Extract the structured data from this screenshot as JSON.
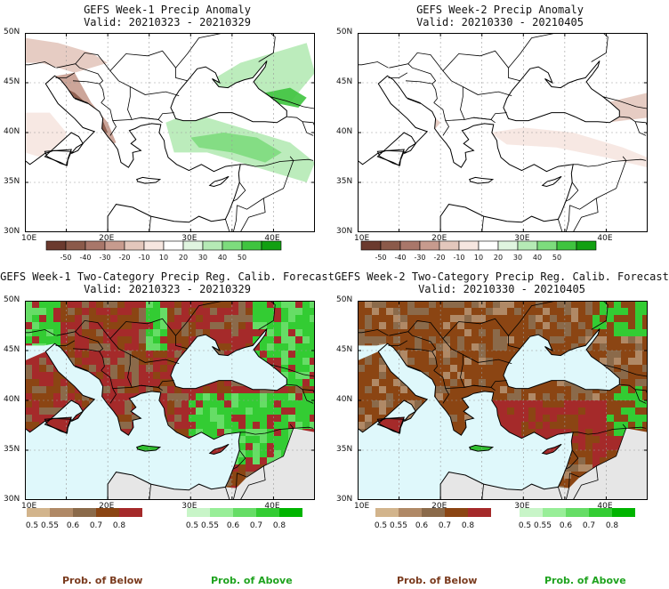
{
  "panels": [
    {
      "id": "p1",
      "title": "GEFS Week-1 Precip Anomaly",
      "valid": "Valid: 20210323 - 20210329",
      "kind": "anomaly"
    },
    {
      "id": "p2",
      "title": "GEFS Week-2 Precip Anomaly",
      "valid": "Valid: 20210330 - 20210405",
      "kind": "anomaly"
    },
    {
      "id": "p3",
      "title": "GEFS Week-1 Two-Category Precip Reg. Calib. Forecast",
      "valid": "Valid: 20210323 - 20210329",
      "kind": "prob"
    },
    {
      "id": "p4",
      "title": "GEFS Week-2 Two-Category Precip Reg. Calib. Forecast",
      "valid": "Valid: 20210330 - 20210405",
      "kind": "prob"
    }
  ],
  "axes": {
    "lat_labels": [
      "50N",
      "45N",
      "40N",
      "35N",
      "30N"
    ],
    "lon_labels": [
      "10E",
      "20E",
      "30E",
      "40E"
    ]
  },
  "anomaly_legend": {
    "labels": [
      "-50",
      "-40",
      "-30",
      "-20",
      "-10",
      "10",
      "20",
      "30",
      "40",
      "50"
    ],
    "colors": [
      "#6b3a2e",
      "#8b5a4a",
      "#a9776a",
      "#c79b8e",
      "#e3c7bc",
      "#f6e6e0",
      "#ffffff",
      "#e0f5e0",
      "#b5eab5",
      "#7ddc7d",
      "#3fc43f",
      "#12a012"
    ]
  },
  "below_legend": {
    "labels": [
      "0.5",
      "0.55",
      "0.6",
      "0.7",
      "0.8"
    ],
    "colors": [
      "#d2b48c",
      "#b08966",
      "#8b6a4a",
      "#8b4513",
      "#a52a2a"
    ]
  },
  "above_legend": {
    "labels": [
      "0.5",
      "0.55",
      "0.6",
      "0.7",
      "0.8"
    ],
    "colors": [
      "#c8f5c8",
      "#98ee98",
      "#66dd66",
      "#33cc33",
      "#00b400"
    ]
  },
  "footer": {
    "below_label": "Prob. of Below",
    "above_label": "Prob. of Above",
    "below_color": "#7a3b1e",
    "above_color": "#1fa31f"
  },
  "colors": {
    "sea": "#dff8fb",
    "outside": "#e6e6e6",
    "land_below": "#8b4513",
    "land_below_strong": "#a52a2a",
    "land_above": "#33cc33"
  }
}
